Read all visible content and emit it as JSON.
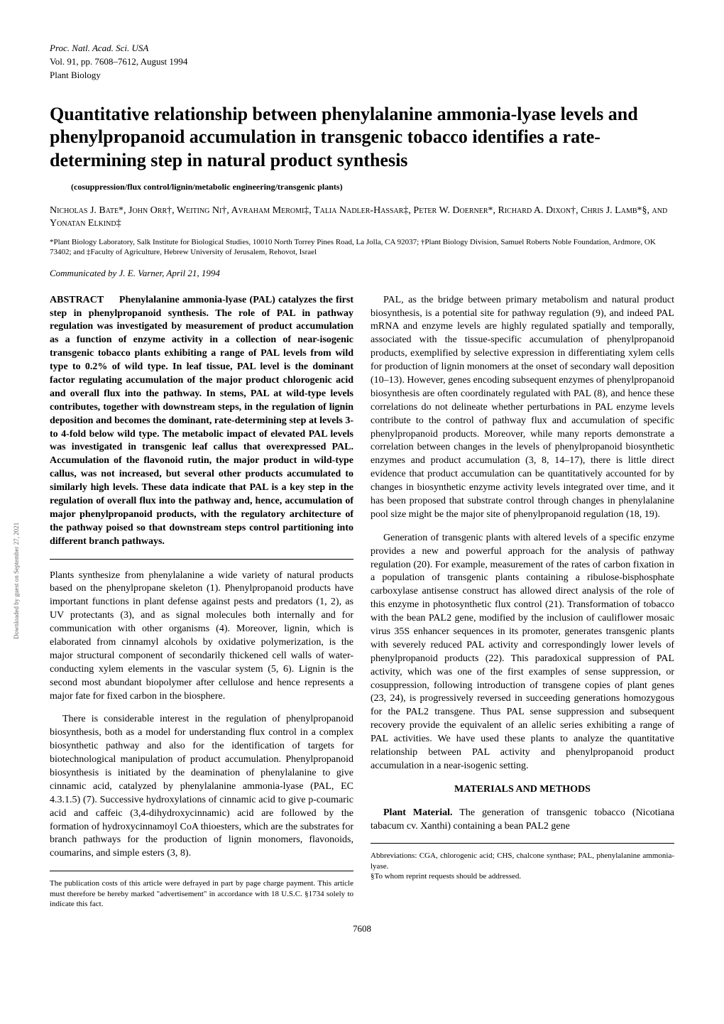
{
  "header": {
    "journal": "Proc. Natl. Acad. Sci. USA",
    "volume": "Vol. 91, pp. 7608–7612, August 1994",
    "section": "Plant Biology"
  },
  "title": "Quantitative relationship between phenylalanine ammonia-lyase levels and phenylpropanoid accumulation in transgenic tobacco identifies a rate-determining step in natural product synthesis",
  "keywords": "(cosuppression/flux control/lignin/metabolic engineering/transgenic plants)",
  "authors": "Nicholas J. Bate*, John Orr†, Weiting Ni†, Avraham Meromi‡, Talia Nadler-Hassar‡, Peter W. Doerner*, Richard A. Dixon†, Chris J. Lamb*§, and Yonatan Elkind‡",
  "affiliations": "*Plant Biology Laboratory, Salk Institute for Biological Studies, 10010 North Torrey Pines Road, La Jolla, CA 92037; †Plant Biology Division, Samuel Roberts Noble Foundation, Ardmore, OK 73402; and ‡Faculty of Agriculture, Hebrew University of Jerusalem, Rehovot, Israel",
  "communicated": "Communicated by J. E. Varner, April 21, 1994",
  "abstract": {
    "heading": "ABSTRACT",
    "text": "Phenylalanine ammonia-lyase (PAL) catalyzes the first step in phenylpropanoid synthesis. The role of PAL in pathway regulation was investigated by measurement of product accumulation as a function of enzyme activity in a collection of near-isogenic transgenic tobacco plants exhibiting a range of PAL levels from wild type to 0.2% of wild type. In leaf tissue, PAL level is the dominant factor regulating accumulation of the major product chlorogenic acid and overall flux into the pathway. In stems, PAL at wild-type levels contributes, together with downstream steps, in the regulation of lignin deposition and becomes the dominant, rate-determining step at levels 3- to 4-fold below wild type. The metabolic impact of elevated PAL levels was investigated in transgenic leaf callus that overexpressed PAL. Accumulation of the flavonoid rutin, the major product in wild-type callus, was not increased, but several other products accumulated to similarly high levels. These data indicate that PAL is a key step in the regulation of overall flux into the pathway and, hence, accumulation of major phenylpropanoid products, with the regulatory architecture of the pathway poised so that downstream steps control partitioning into different branch pathways."
  },
  "body_left": {
    "p1": "Plants synthesize from phenylalanine a wide variety of natural products based on the phenylpropane skeleton (1). Phenylpropanoid products have important functions in plant defense against pests and predators (1, 2), as UV protectants (3), and as signal molecules both internally and for communication with other organisms (4). Moreover, lignin, which is elaborated from cinnamyl alcohols by oxidative polymerization, is the major structural component of secondarily thickened cell walls of water-conducting xylem elements in the vascular system (5, 6). Lignin is the second most abundant biopolymer after cellulose and hence represents a major fate for fixed carbon in the biosphere.",
    "p2": "There is considerable interest in the regulation of phenylpropanoid biosynthesis, both as a model for understanding flux control in a complex biosynthetic pathway and also for the identification of targets for biotechnological manipulation of product accumulation. Phenylpropanoid biosynthesis is initiated by the deamination of phenylalanine to give cinnamic acid, catalyzed by phenylalanine ammonia-lyase (PAL, EC 4.3.1.5) (7). Successive hydroxylations of cinnamic acid to give p-coumaric acid and caffeic (3,4-dihydroxycinnamic) acid are followed by the formation of hydroxycinnamoyl CoA thioesters, which are the substrates for branch pathways for the production of lignin monomers, flavonoids, coumarins, and simple esters (3, 8)."
  },
  "body_right": {
    "p1": "PAL, as the bridge between primary metabolism and natural product biosynthesis, is a potential site for pathway regulation (9), and indeed PAL mRNA and enzyme levels are highly regulated spatially and temporally, associated with the tissue-specific accumulation of phenylpropanoid products, exemplified by selective expression in differentiating xylem cells for production of lignin monomers at the onset of secondary wall deposition (10–13). However, genes encoding subsequent enzymes of phenylpropanoid biosynthesis are often coordinately regulated with PAL (8), and hence these correlations do not delineate whether perturbations in PAL enzyme levels contribute to the control of pathway flux and accumulation of specific phenylpropanoid products. Moreover, while many reports demonstrate a correlation between changes in the levels of phenylpropanoid biosynthetic enzymes and product accumulation (3, 8, 14–17), there is little direct evidence that product accumulation can be quantitatively accounted for by changes in biosynthetic enzyme activity levels integrated over time, and it has been proposed that substrate control through changes in phenylalanine pool size might be the major site of phenylpropanoid regulation (18, 19).",
    "p2": "Generation of transgenic plants with altered levels of a specific enzyme provides a new and powerful approach for the analysis of pathway regulation (20). For example, measurement of the rates of carbon fixation in a population of transgenic plants containing a ribulose-bisphosphate carboxylase antisense construct has allowed direct analysis of the role of this enzyme in photosynthetic flux control (21). Transformation of tobacco with the bean PAL2 gene, modified by the inclusion of cauliflower mosaic virus 35S enhancer sequences in its promoter, generates transgenic plants with severely reduced PAL activity and correspondingly lower levels of phenylpropanoid products (22). This paradoxical suppression of PAL activity, which was one of the first examples of sense suppression, or cosuppression, following introduction of transgene copies of plant genes (23, 24), is progressively reversed in succeeding generations homozygous for the PAL2 transgene. Thus PAL sense suppression and subsequent recovery provide the equivalent of an allelic series exhibiting a range of PAL activities. We have used these plants to analyze the quantitative relationship between PAL activity and phenylpropanoid product accumulation in a near-isogenic setting."
  },
  "materials_heading": "MATERIALS AND METHODS",
  "materials": {
    "run_in": "Plant Material.",
    "text": " The generation of transgenic tobacco (Nicotiana tabacum cv. Xanthi) containing a bean PAL2 gene"
  },
  "footnotes": {
    "left": "The publication costs of this article were defrayed in part by page charge payment. This article must therefore be hereby marked \"advertisement\" in accordance with 18 U.S.C. §1734 solely to indicate this fact.",
    "right": "Abbreviations: CGA, chlorogenic acid; CHS, chalcone synthase; PAL, phenylalanine ammonia-lyase.\n§To whom reprint requests should be addressed."
  },
  "page_number": "7608",
  "side_note": "Downloaded by guest on September 27, 2021"
}
